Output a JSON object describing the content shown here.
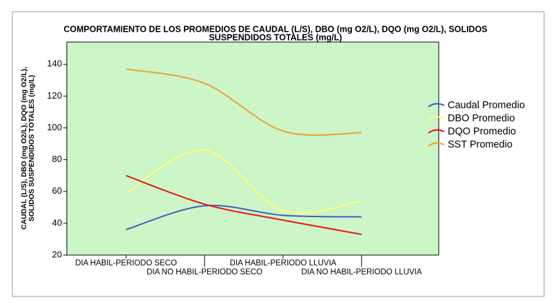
{
  "chart_data": {
    "type": "line",
    "title": [
      "COMPORTAMIENTO DE LOS PROMEDIOS DE CAUDAL (L/S), DBO (mg O2/L), DQO (mg O2/L), SOLIDOS",
      "SUSPENDIDOS TOTALES (mg/L)"
    ],
    "y_label": [
      "CAUDAL (L/S), DBO (mg O2/L), DQO (mg O2/L),",
      "SOLIDOS SUSPENDIDOS TOTALES (mg/L)"
    ],
    "categories": [
      "DIA HABIL-PERIODO SECO",
      "DIA NO HABIL-PERIODO SECO",
      "DIA HABIL-PERIODO LLUVIA",
      "DIA NO HABIL-PERIODO LLUVIA"
    ],
    "series": [
      {
        "name": "Caudal Promedio",
        "color": "#3f5fbf",
        "values": [
          36,
          51,
          45,
          44
        ]
      },
      {
        "name": "DBO Promedio",
        "color": "#ffff70",
        "values": [
          59,
          86,
          48,
          54
        ]
      },
      {
        "name": "DQO Promedio",
        "color": "#ee1111",
        "values": [
          70,
          52,
          42,
          33
        ]
      },
      {
        "name": "SST Promedio",
        "color": "#f0a030",
        "values": [
          137,
          128,
          98,
          97
        ]
      }
    ],
    "ylim": [
      20,
      154
    ],
    "yticks": [
      20,
      40,
      60,
      80,
      100,
      120,
      140
    ],
    "plot_background": "#ccf5c8",
    "legend": "right"
  }
}
